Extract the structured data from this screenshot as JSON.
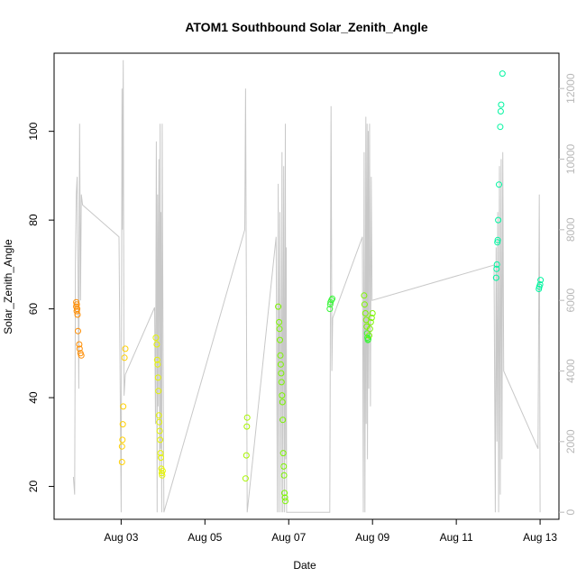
{
  "chart_data": {
    "type": "scatter",
    "title": "ATOM1 Southbound Solar_Zenith_Angle",
    "xlabel": "Date",
    "ylabel": "Solar_Zenith_Angle",
    "x_tick_labels": [
      "Aug 03",
      "Aug 05",
      "Aug 07",
      "Aug 09",
      "Aug 11",
      "Aug 13"
    ],
    "x_tick_days": [
      3,
      5,
      7,
      9,
      11,
      13
    ],
    "xlim_days": [
      1.4,
      13.45
    ],
    "y_ticks": [
      20,
      40,
      60,
      80,
      100
    ],
    "ylim": [
      12.6,
      117.6
    ],
    "y2_ticks": [
      0,
      2000,
      4000,
      6000,
      8000,
      10000,
      12000
    ],
    "y2lim": [
      -200,
      13000
    ],
    "grid": false,
    "point_colors": [
      "#ff8c00",
      "#ffd000",
      "#e6f500",
      "#a8f500",
      "#7cf500",
      "#3cf53c",
      "#00f5a0"
    ],
    "trace_color": "#c8c8c8",
    "points": [
      {
        "d": 1.93,
        "y": 61.5,
        "c": 0
      },
      {
        "d": 1.94,
        "y": 61.0,
        "c": 0
      },
      {
        "d": 1.93,
        "y": 60.5,
        "c": 0
      },
      {
        "d": 1.95,
        "y": 60.0,
        "c": 0
      },
      {
        "d": 1.94,
        "y": 59.5,
        "c": 0
      },
      {
        "d": 1.96,
        "y": 58.7,
        "c": 0
      },
      {
        "d": 1.97,
        "y": 55.0,
        "c": 0
      },
      {
        "d": 2.0,
        "y": 52.0,
        "c": 0
      },
      {
        "d": 2.01,
        "y": 51.0,
        "c": 0
      },
      {
        "d": 2.03,
        "y": 50.0,
        "c": 0
      },
      {
        "d": 2.05,
        "y": 49.5,
        "c": 0
      },
      {
        "d": 3.02,
        "y": 25.5,
        "c": 1
      },
      {
        "d": 3.02,
        "y": 29.0,
        "c": 1
      },
      {
        "d": 3.03,
        "y": 30.5,
        "c": 1
      },
      {
        "d": 3.04,
        "y": 34.0,
        "c": 1
      },
      {
        "d": 3.05,
        "y": 38.0,
        "c": 1
      },
      {
        "d": 3.08,
        "y": 49.0,
        "c": 1
      },
      {
        "d": 3.1,
        "y": 51.0,
        "c": 1
      },
      {
        "d": 3.83,
        "y": 53.5,
        "c": 2
      },
      {
        "d": 3.85,
        "y": 52.0,
        "c": 2
      },
      {
        "d": 3.86,
        "y": 48.5,
        "c": 2
      },
      {
        "d": 3.87,
        "y": 47.5,
        "c": 2
      },
      {
        "d": 3.88,
        "y": 44.5,
        "c": 2
      },
      {
        "d": 3.89,
        "y": 41.5,
        "c": 2
      },
      {
        "d": 3.9,
        "y": 36.0,
        "c": 2
      },
      {
        "d": 3.91,
        "y": 34.5,
        "c": 2
      },
      {
        "d": 3.92,
        "y": 32.5,
        "c": 2
      },
      {
        "d": 3.93,
        "y": 30.5,
        "c": 2
      },
      {
        "d": 3.94,
        "y": 27.5,
        "c": 2
      },
      {
        "d": 3.95,
        "y": 26.5,
        "c": 2
      },
      {
        "d": 3.96,
        "y": 24.0,
        "c": 2
      },
      {
        "d": 3.97,
        "y": 23.0,
        "c": 2
      },
      {
        "d": 3.98,
        "y": 22.5,
        "c": 2
      },
      {
        "d": 3.99,
        "y": 23.5,
        "c": 2
      },
      {
        "d": 5.97,
        "y": 21.8,
        "c": 3
      },
      {
        "d": 5.99,
        "y": 27.0,
        "c": 3
      },
      {
        "d": 6.0,
        "y": 33.5,
        "c": 3
      },
      {
        "d": 6.01,
        "y": 35.5,
        "c": 3
      },
      {
        "d": 6.75,
        "y": 60.5,
        "c": 4
      },
      {
        "d": 6.77,
        "y": 57.0,
        "c": 4
      },
      {
        "d": 6.78,
        "y": 55.5,
        "c": 4
      },
      {
        "d": 6.79,
        "y": 53.0,
        "c": 4
      },
      {
        "d": 6.8,
        "y": 49.5,
        "c": 4
      },
      {
        "d": 6.81,
        "y": 47.5,
        "c": 4
      },
      {
        "d": 6.82,
        "y": 45.5,
        "c": 4
      },
      {
        "d": 6.83,
        "y": 43.5,
        "c": 4
      },
      {
        "d": 6.84,
        "y": 40.5,
        "c": 4
      },
      {
        "d": 6.85,
        "y": 39.0,
        "c": 4
      },
      {
        "d": 6.86,
        "y": 35.0,
        "c": 4
      },
      {
        "d": 6.87,
        "y": 27.5,
        "c": 4
      },
      {
        "d": 6.88,
        "y": 24.5,
        "c": 4
      },
      {
        "d": 6.89,
        "y": 22.5,
        "c": 4
      },
      {
        "d": 6.9,
        "y": 18.5,
        "c": 4
      },
      {
        "d": 6.91,
        "y": 17.5,
        "c": 4
      },
      {
        "d": 6.92,
        "y": 16.7,
        "c": 4
      },
      {
        "d": 7.98,
        "y": 60.0,
        "c": 5
      },
      {
        "d": 7.99,
        "y": 61.0,
        "c": 5
      },
      {
        "d": 8.0,
        "y": 61.5,
        "c": 5
      },
      {
        "d": 8.02,
        "y": 62.0,
        "c": 5
      },
      {
        "d": 8.04,
        "y": 62.3,
        "c": 5
      },
      {
        "d": 8.8,
        "y": 63.0,
        "c": 4
      },
      {
        "d": 8.81,
        "y": 61.0,
        "c": 4
      },
      {
        "d": 8.83,
        "y": 59.0,
        "c": 4
      },
      {
        "d": 8.85,
        "y": 57.5,
        "c": 4
      },
      {
        "d": 8.86,
        "y": 56.0,
        "c": 4
      },
      {
        "d": 8.87,
        "y": 54.5,
        "c": 5
      },
      {
        "d": 8.88,
        "y": 53.5,
        "c": 5
      },
      {
        "d": 8.89,
        "y": 53.0,
        "c": 5
      },
      {
        "d": 8.9,
        "y": 53.2,
        "c": 5
      },
      {
        "d": 8.92,
        "y": 54.0,
        "c": 4
      },
      {
        "d": 8.94,
        "y": 55.5,
        "c": 4
      },
      {
        "d": 8.96,
        "y": 57.0,
        "c": 4
      },
      {
        "d": 8.98,
        "y": 58.0,
        "c": 4
      },
      {
        "d": 9.0,
        "y": 59.0,
        "c": 4
      },
      {
        "d": 11.95,
        "y": 67.0,
        "c": 6
      },
      {
        "d": 11.96,
        "y": 69.0,
        "c": 6
      },
      {
        "d": 11.97,
        "y": 70.0,
        "c": 6
      },
      {
        "d": 11.98,
        "y": 75.0,
        "c": 6
      },
      {
        "d": 11.99,
        "y": 75.5,
        "c": 6
      },
      {
        "d": 12.0,
        "y": 80.0,
        "c": 6
      },
      {
        "d": 12.02,
        "y": 88.0,
        "c": 6
      },
      {
        "d": 12.05,
        "y": 101.0,
        "c": 6
      },
      {
        "d": 12.06,
        "y": 104.5,
        "c": 6
      },
      {
        "d": 12.07,
        "y": 106.0,
        "c": 6
      },
      {
        "d": 12.1,
        "y": 113.0,
        "c": 6
      },
      {
        "d": 12.97,
        "y": 64.5,
        "c": 6
      },
      {
        "d": 12.98,
        "y": 65.0,
        "c": 6
      },
      {
        "d": 13.0,
        "y": 65.5,
        "c": 6
      },
      {
        "d": 13.01,
        "y": 66.5,
        "c": 6
      }
    ],
    "secondary_trace": [
      [
        1.86,
        1000
      ],
      [
        1.89,
        500
      ],
      [
        1.91,
        7000
      ],
      [
        1.93,
        9000
      ],
      [
        1.95,
        9500
      ],
      [
        1.97,
        7000
      ],
      [
        1.99,
        3500
      ],
      [
        2.01,
        11000
      ],
      [
        2.03,
        6000
      ],
      [
        2.05,
        9000
      ],
      [
        2.08,
        8700
      ],
      [
        2.95,
        7800
      ],
      [
        3.0,
        0
      ],
      [
        3.01,
        5000
      ],
      [
        3.02,
        12000
      ],
      [
        3.03,
        8000
      ],
      [
        3.05,
        12800
      ],
      [
        3.07,
        3300
      ],
      [
        3.1,
        3900
      ],
      [
        3.8,
        5800
      ],
      [
        3.82,
        2500
      ],
      [
        3.84,
        10500
      ],
      [
        3.86,
        0
      ],
      [
        3.87,
        9000
      ],
      [
        3.88,
        3000
      ],
      [
        3.9,
        10000
      ],
      [
        3.92,
        1000
      ],
      [
        3.93,
        11000
      ],
      [
        3.94,
        1800
      ],
      [
        3.95,
        8500
      ],
      [
        3.97,
        0
      ],
      [
        3.98,
        11000
      ],
      [
        4.0,
        5000
      ],
      [
        4.02,
        0
      ],
      [
        5.95,
        8000
      ],
      [
        5.97,
        12000
      ],
      [
        5.99,
        6200
      ],
      [
        6.01,
        0
      ],
      [
        6.7,
        7800
      ],
      [
        6.73,
        0
      ],
      [
        6.75,
        9300
      ],
      [
        6.77,
        0
      ],
      [
        6.79,
        8500
      ],
      [
        6.82,
        0
      ],
      [
        6.84,
        10200
      ],
      [
        6.86,
        0
      ],
      [
        6.88,
        9800
      ],
      [
        6.9,
        0
      ],
      [
        6.92,
        11000
      ],
      [
        6.93,
        1500
      ],
      [
        6.94,
        7500
      ],
      [
        6.95,
        0
      ],
      [
        7.98,
        0
      ],
      [
        8.01,
        11500
      ],
      [
        8.02,
        8000
      ],
      [
        8.03,
        4000
      ],
      [
        8.05,
        5500
      ],
      [
        8.76,
        7800
      ],
      [
        8.78,
        0
      ],
      [
        8.8,
        10200
      ],
      [
        8.82,
        0
      ],
      [
        8.84,
        11200
      ],
      [
        8.85,
        2500
      ],
      [
        8.87,
        11000
      ],
      [
        8.88,
        1500
      ],
      [
        8.9,
        10800
      ],
      [
        8.91,
        3500
      ],
      [
        8.93,
        11000
      ],
      [
        8.95,
        3000
      ],
      [
        8.97,
        9500
      ],
      [
        8.99,
        6000
      ],
      [
        11.9,
        7000
      ],
      [
        11.93,
        0
      ],
      [
        11.95,
        7500
      ],
      [
        11.97,
        2000
      ],
      [
        11.99,
        8500
      ],
      [
        12.01,
        0
      ],
      [
        12.03,
        9800
      ],
      [
        12.05,
        500
      ],
      [
        12.07,
        10000
      ],
      [
        12.09,
        1500
      ],
      [
        12.11,
        10200
      ],
      [
        12.13,
        4000
      ],
      [
        12.95,
        1800
      ],
      [
        12.98,
        9000
      ],
      [
        13.0,
        0
      ]
    ]
  }
}
